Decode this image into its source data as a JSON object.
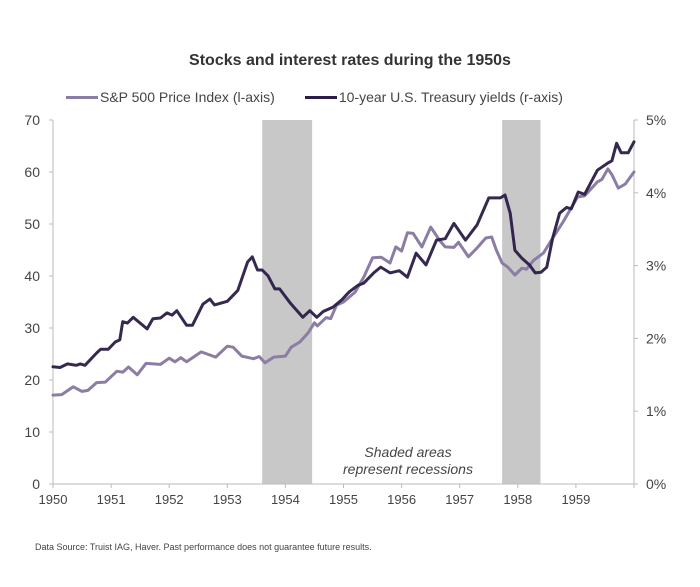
{
  "chart_data": {
    "type": "line",
    "title": "Stocks and interest rates during the 1950s",
    "xlim": [
      1950,
      1960
    ],
    "x_ticks": [
      "1950",
      "1951",
      "1952",
      "1953",
      "1954",
      "1955",
      "1956",
      "1957",
      "1958",
      "1959"
    ],
    "y_left": {
      "lim": [
        0,
        70
      ],
      "ticks": [
        "0",
        "10",
        "20",
        "30",
        "40",
        "50",
        "60",
        "70"
      ]
    },
    "y_right": {
      "lim": [
        0,
        5
      ],
      "ticks": [
        "0%",
        "1%",
        "2%",
        "3%",
        "4%",
        "5%"
      ]
    },
    "grid": false,
    "legend_position": "top",
    "recessions": [
      [
        1953.6,
        1954.46
      ],
      [
        1957.73,
        1958.39
      ]
    ],
    "annotation": [
      "Shaded areas",
      "represent recessions"
    ],
    "series": [
      {
        "name": "S&P 500 Price Index (l-axis)",
        "axis": "left",
        "color": "#8b7da3",
        "x": [
          1950.0,
          1950.15,
          1950.35,
          1950.5,
          1950.6,
          1950.75,
          1950.9,
          1951.1,
          1951.2,
          1951.3,
          1951.45,
          1951.6,
          1951.85,
          1952.0,
          1952.1,
          1952.2,
          1952.3,
          1952.55,
          1952.8,
          1953.0,
          1953.1,
          1953.25,
          1953.45,
          1953.55,
          1953.65,
          1953.8,
          1954.0,
          1954.1,
          1954.25,
          1954.4,
          1954.5,
          1954.55,
          1954.7,
          1954.78,
          1954.88,
          1955.0,
          1955.2,
          1955.35,
          1955.5,
          1955.65,
          1955.8,
          1955.9,
          1956.0,
          1956.1,
          1956.2,
          1956.35,
          1956.5,
          1956.65,
          1956.75,
          1956.9,
          1956.98,
          1957.15,
          1957.3,
          1957.45,
          1957.55,
          1957.63,
          1957.73,
          1957.83,
          1957.95,
          1958.07,
          1958.15,
          1958.27,
          1958.44,
          1958.6,
          1958.78,
          1959.03,
          1959.15,
          1959.37,
          1959.45,
          1959.55,
          1959.62,
          1959.73,
          1959.85,
          1960.0
        ],
        "y": [
          17.1,
          17.2,
          18.7,
          17.8,
          18.0,
          19.5,
          19.6,
          21.7,
          21.5,
          22.5,
          21.0,
          23.2,
          23.0,
          24.2,
          23.5,
          24.3,
          23.5,
          25.4,
          24.4,
          26.5,
          26.3,
          24.6,
          24.1,
          24.5,
          23.3,
          24.4,
          24.6,
          26.3,
          27.3,
          29.2,
          31.0,
          30.4,
          32.0,
          31.8,
          34.4,
          35.0,
          36.9,
          39.8,
          43.5,
          43.6,
          42.5,
          45.6,
          44.8,
          48.3,
          48.2,
          45.6,
          49.4,
          46.9,
          45.6,
          45.5,
          46.5,
          43.7,
          45.4,
          47.3,
          47.5,
          45.0,
          42.5,
          41.7,
          40.2,
          41.5,
          41.3,
          43.0,
          44.4,
          47.3,
          50.4,
          55.2,
          55.4,
          58.1,
          58.6,
          60.6,
          59.5,
          56.9,
          57.7,
          60.0
        ]
      },
      {
        "name": "10-year U.S. Treasury yields (r-axis)",
        "axis": "right",
        "color": "#2b1d47",
        "x": [
          1950.0,
          1950.12,
          1950.25,
          1950.4,
          1950.47,
          1950.55,
          1950.75,
          1950.82,
          1950.95,
          1951.07,
          1951.15,
          1951.2,
          1951.28,
          1951.38,
          1951.62,
          1951.72,
          1951.85,
          1951.96,
          1952.05,
          1952.13,
          1952.3,
          1952.4,
          1952.58,
          1952.7,
          1952.78,
          1953.0,
          1953.18,
          1953.35,
          1953.43,
          1953.52,
          1953.6,
          1953.7,
          1953.82,
          1953.9,
          1954.08,
          1954.3,
          1954.42,
          1954.54,
          1954.65,
          1954.82,
          1954.97,
          1955.1,
          1955.25,
          1955.35,
          1955.52,
          1955.64,
          1955.8,
          1955.96,
          1956.1,
          1956.25,
          1956.42,
          1956.6,
          1956.75,
          1956.9,
          1957.1,
          1957.3,
          1957.5,
          1957.7,
          1957.78,
          1957.87,
          1957.95,
          1958.07,
          1958.2,
          1958.3,
          1958.4,
          1958.5,
          1958.6,
          1958.72,
          1958.84,
          1958.92,
          1959.04,
          1959.15,
          1959.37,
          1959.55,
          1959.62,
          1959.7,
          1959.78,
          1959.9,
          1960.0
        ],
        "y": [
          1.61,
          1.6,
          1.65,
          1.63,
          1.65,
          1.63,
          1.8,
          1.85,
          1.85,
          1.95,
          1.98,
          2.23,
          2.21,
          2.29,
          2.13,
          2.27,
          2.28,
          2.35,
          2.32,
          2.38,
          2.18,
          2.18,
          2.47,
          2.54,
          2.46,
          2.51,
          2.66,
          3.05,
          3.12,
          2.94,
          2.94,
          2.86,
          2.68,
          2.68,
          2.49,
          2.29,
          2.38,
          2.29,
          2.37,
          2.43,
          2.53,
          2.64,
          2.73,
          2.76,
          2.9,
          2.98,
          2.9,
          2.93,
          2.84,
          3.17,
          3.01,
          3.35,
          3.37,
          3.58,
          3.35,
          3.56,
          3.93,
          3.93,
          3.97,
          3.72,
          3.21,
          3.1,
          3.01,
          2.9,
          2.91,
          2.98,
          3.38,
          3.72,
          3.8,
          3.78,
          4.01,
          3.98,
          4.31,
          4.41,
          4.44,
          4.68,
          4.55,
          4.55,
          4.7
        ]
      }
    ],
    "source": "Data Source: Truist IAG, Haver. Past performance does not guarantee future results."
  }
}
